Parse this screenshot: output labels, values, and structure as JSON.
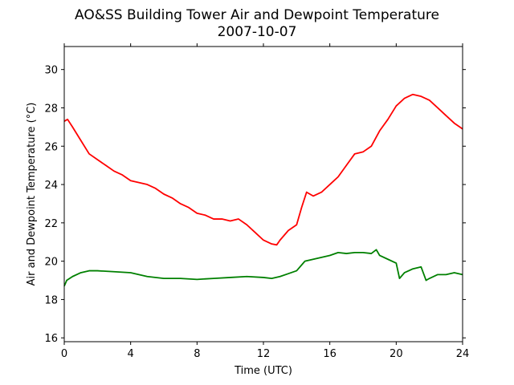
{
  "chart_data": {
    "type": "line",
    "title": "AO&SS Building Tower Air and Dewpoint Temperature",
    "subtitle": "2007-10-07",
    "xlabel": "Time (UTC)",
    "ylabel": "Air and Dewpoint Temperature (°C)",
    "xlim": [
      0,
      24
    ],
    "ylim": [
      15.8,
      31.2
    ],
    "xticks": [
      0,
      4,
      8,
      12,
      16,
      20,
      24
    ],
    "yticks": [
      16,
      18,
      20,
      22,
      24,
      26,
      28,
      30
    ],
    "grid": false,
    "legend": "none",
    "series": [
      {
        "color": "#ff0000",
        "x": [
          0,
          0.2,
          0.5,
          1.0,
          1.5,
          2.0,
          2.5,
          3.0,
          3.5,
          4.0,
          4.5,
          5.0,
          5.5,
          6.0,
          6.5,
          7.0,
          7.5,
          8.0,
          8.5,
          9.0,
          9.5,
          10.0,
          10.5,
          11.0,
          11.5,
          12.0,
          12.5,
          12.8,
          13.0,
          13.5,
          14.0,
          14.3,
          14.6,
          15.0,
          15.5,
          16.0,
          16.5,
          17.0,
          17.5,
          18.0,
          18.5,
          19.0,
          19.5,
          20.0,
          20.5,
          21.0,
          21.5,
          22.0,
          22.5,
          23.0,
          23.5,
          24.0
        ],
        "y": [
          27.3,
          27.4,
          27.0,
          26.3,
          25.6,
          25.3,
          25.0,
          24.7,
          24.5,
          24.2,
          24.1,
          24.0,
          23.8,
          23.5,
          23.3,
          23.0,
          22.8,
          22.5,
          22.4,
          22.2,
          22.2,
          22.1,
          22.2,
          21.9,
          21.5,
          21.1,
          20.9,
          20.85,
          21.1,
          21.6,
          21.9,
          22.8,
          23.6,
          23.4,
          23.6,
          24.0,
          24.4,
          25.0,
          25.6,
          25.7,
          26.0,
          26.8,
          27.4,
          28.1,
          28.5,
          28.7,
          28.6,
          28.4,
          28.0,
          27.6,
          27.2,
          26.9
        ]
      },
      {
        "color": "#008000",
        "x": [
          0,
          0.15,
          0.5,
          1.0,
          1.5,
          2.0,
          3.0,
          4.0,
          5.0,
          6.0,
          7.0,
          8.0,
          9.0,
          10.0,
          11.0,
          12.0,
          12.5,
          13.0,
          13.5,
          14.0,
          14.5,
          15.0,
          15.5,
          16.0,
          16.5,
          17.0,
          17.5,
          18.0,
          18.5,
          18.8,
          19.0,
          19.5,
          20.0,
          20.2,
          20.5,
          21.0,
          21.5,
          21.8,
          22.0,
          22.5,
          23.0,
          23.5,
          24.0
        ],
        "y": [
          18.7,
          19.0,
          19.2,
          19.4,
          19.5,
          19.5,
          19.45,
          19.4,
          19.2,
          19.1,
          19.1,
          19.05,
          19.1,
          19.15,
          19.2,
          19.15,
          19.1,
          19.2,
          19.35,
          19.5,
          20.0,
          20.1,
          20.2,
          20.3,
          20.45,
          20.4,
          20.45,
          20.45,
          20.4,
          20.6,
          20.3,
          20.1,
          19.9,
          19.1,
          19.4,
          19.6,
          19.7,
          19.0,
          19.1,
          19.3,
          19.3,
          19.4,
          19.3
        ]
      }
    ]
  }
}
